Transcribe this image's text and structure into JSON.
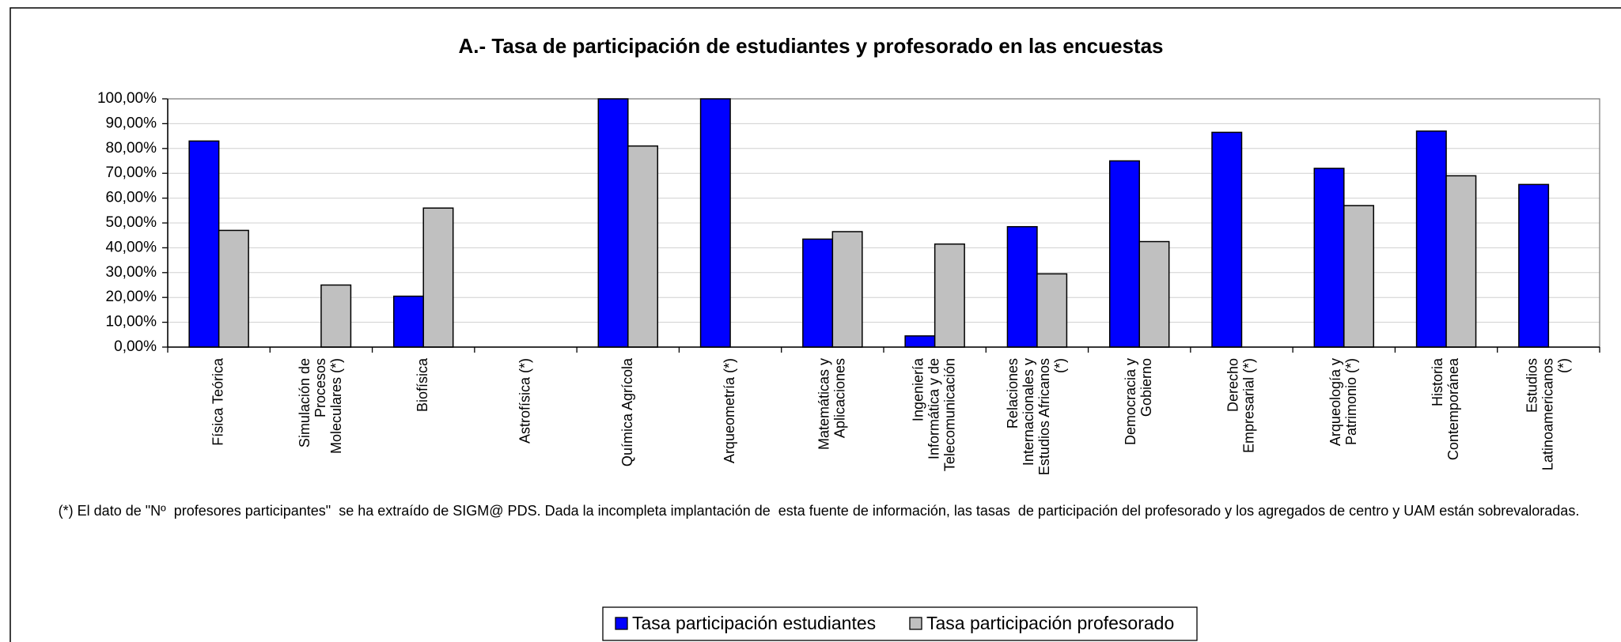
{
  "chart_data": {
    "type": "bar",
    "title": "A.- Tasa de participación de estudiantes y profesorado en las encuestas",
    "categories": [
      "Física Teórica",
      "Simulación de Procesos Moleculares (*)",
      "Biofísica",
      "Astrofísica (*)",
      "Química Agrícola",
      "Arqueometría (*)",
      "Matemáticas y Aplicaciones",
      "Ingeniería Informática y de Telecomunicación",
      "Relaciones Internacionales y Estudios Africanos (*)",
      "Democracia y Gobierno",
      "Derecho Empresarial (*)",
      "Arqueología y Patrimonio (*)",
      "Historia Contemporánea",
      "Estudios Latinoamericanos (*)"
    ],
    "series": [
      {
        "name": "Tasa participación estudiantes",
        "color": "#0000ff",
        "values": [
          83,
          null,
          20.5,
          null,
          100,
          100,
          43.5,
          4.5,
          48.5,
          75,
          86.5,
          72,
          87,
          65.5
        ]
      },
      {
        "name": "Tasa participación profesorado",
        "color": "#c0c0c0",
        "values": [
          47,
          25,
          56,
          null,
          81,
          null,
          46.5,
          41.5,
          29.5,
          42.5,
          null,
          57,
          69,
          null
        ]
      }
    ],
    "ylim": [
      0,
      100
    ],
    "yticks": [
      {
        "value": 0,
        "label": "0,00%"
      },
      {
        "value": 10,
        "label": "10,00%"
      },
      {
        "value": 20,
        "label": "20,00%"
      },
      {
        "value": 30,
        "label": "30,00%"
      },
      {
        "value": 40,
        "label": "40,00%"
      },
      {
        "value": 50,
        "label": "50,00%"
      },
      {
        "value": 60,
        "label": "60,00%"
      },
      {
        "value": 70,
        "label": "70,00%"
      },
      {
        "value": 80,
        "label": "80,00%"
      },
      {
        "value": 90,
        "label": "90,00%"
      },
      {
        "value": 100,
        "label": "100,00%"
      }
    ],
    "grid": true,
    "legend": "bottom",
    "note": "(*) El dato de \"Nº  profesores participantes\"  se ha extraído de SIGM@ PDS. Dada la incompleta implantación de  esta fuente de información, las tasas  de participación del profesorado y los agregados de centro y UAM están sobrevaloradas."
  }
}
